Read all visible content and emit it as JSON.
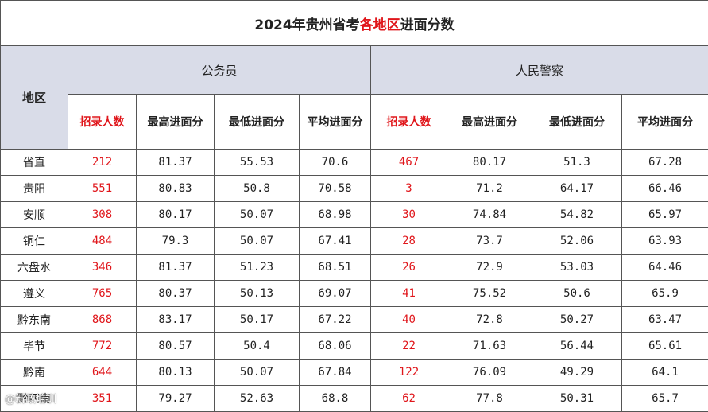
{
  "title": {
    "prefix": "2024年贵州省考",
    "highlight": "各地区",
    "suffix": "进面分数"
  },
  "region_header": "地区",
  "groups": {
    "civil": "公务员",
    "police": "人民警察"
  },
  "columns": [
    "招录人数",
    "最高进面分",
    "最低进面分",
    "平均进面分"
  ],
  "rows": [
    {
      "region": "省直",
      "civil": [
        "212",
        "81.37",
        "55.53",
        "70.6"
      ],
      "police": [
        "467",
        "80.17",
        "51.3",
        "67.28"
      ]
    },
    {
      "region": "贵阳",
      "civil": [
        "551",
        "80.83",
        "50.8",
        "70.58"
      ],
      "police": [
        "3",
        "71.2",
        "64.17",
        "66.46"
      ]
    },
    {
      "region": "安顺",
      "civil": [
        "308",
        "80.17",
        "50.07",
        "68.98"
      ],
      "police": [
        "30",
        "74.84",
        "54.82",
        "65.97"
      ]
    },
    {
      "region": "铜仁",
      "civil": [
        "484",
        "79.3",
        "50.07",
        "67.41"
      ],
      "police": [
        "28",
        "73.7",
        "52.06",
        "63.93"
      ]
    },
    {
      "region": "六盘水",
      "civil": [
        "346",
        "81.37",
        "51.23",
        "68.51"
      ],
      "police": [
        "26",
        "72.9",
        "53.03",
        "64.46"
      ]
    },
    {
      "region": "遵义",
      "civil": [
        "765",
        "80.37",
        "50.13",
        "69.07"
      ],
      "police": [
        "41",
        "75.52",
        "50.6",
        "65.9"
      ]
    },
    {
      "region": "黔东南",
      "civil": [
        "868",
        "83.17",
        "50.17",
        "67.22"
      ],
      "police": [
        "40",
        "72.8",
        "50.27",
        "63.47"
      ]
    },
    {
      "region": "毕节",
      "civil": [
        "772",
        "80.57",
        "50.4",
        "68.06"
      ],
      "police": [
        "22",
        "71.63",
        "56.44",
        "65.61"
      ]
    },
    {
      "region": "黔南",
      "civil": [
        "644",
        "80.13",
        "50.07",
        "67.84"
      ],
      "police": [
        "122",
        "76.09",
        "49.29",
        "64.1"
      ]
    },
    {
      "region": "黔西南",
      "civil": [
        "351",
        "79.27",
        "52.63",
        "68.8"
      ],
      "police": [
        "62",
        "77.8",
        "50.31",
        "65.7"
      ]
    }
  ],
  "watermark": "@新政培训"
}
